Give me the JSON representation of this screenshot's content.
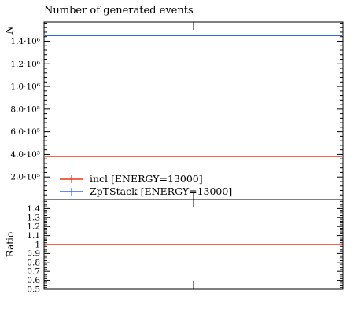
{
  "chart_data": [
    {
      "panel": "main",
      "type": "line",
      "title": "Number of generated events",
      "ylabel": "N",
      "xlabel": "",
      "xlim": [
        0,
        1
      ],
      "ylim": [
        0,
        1570000
      ],
      "yticks": [
        {
          "value": 200000,
          "label": "2.0·10⁵"
        },
        {
          "value": 400000,
          "label": "4.0·10⁵"
        },
        {
          "value": 600000,
          "label": "6.0·10⁵"
        },
        {
          "value": 800000,
          "label": "8.0·10⁵"
        },
        {
          "value": 1000000,
          "label": "1.0·10⁶"
        },
        {
          "value": 1200000,
          "label": "1.2·10⁶"
        },
        {
          "value": 1400000,
          "label": "1.4·10⁶"
        }
      ],
      "series": [
        {
          "name": "incl [ENERGY=13000]",
          "color": "#ee3311",
          "y": 382000
        },
        {
          "name": "ZpTStack [ENERGY=13000]",
          "color": "#3366dd",
          "y": 1450000
        }
      ],
      "legend_position": "bottom-left"
    },
    {
      "panel": "ratio",
      "type": "line",
      "ylabel": "Ratio",
      "xlim": [
        0,
        1
      ],
      "ylim": [
        0.5,
        1.5
      ],
      "yticks": [
        {
          "value": 0.5,
          "label": "0.5"
        },
        {
          "value": 0.6,
          "label": "0.6"
        },
        {
          "value": 0.7,
          "label": "0.7"
        },
        {
          "value": 0.8,
          "label": "0.8"
        },
        {
          "value": 0.9,
          "label": "0.9"
        },
        {
          "value": 1.0,
          "label": "1"
        },
        {
          "value": 1.1,
          "label": "1.1"
        },
        {
          "value": 1.2,
          "label": "1.2"
        },
        {
          "value": 1.3,
          "label": "1.3"
        },
        {
          "value": 1.4,
          "label": "1.4"
        }
      ],
      "series": [
        {
          "name": "incl [ENERGY=13000]",
          "color": "#ee3311",
          "y": 1.0
        }
      ]
    }
  ]
}
